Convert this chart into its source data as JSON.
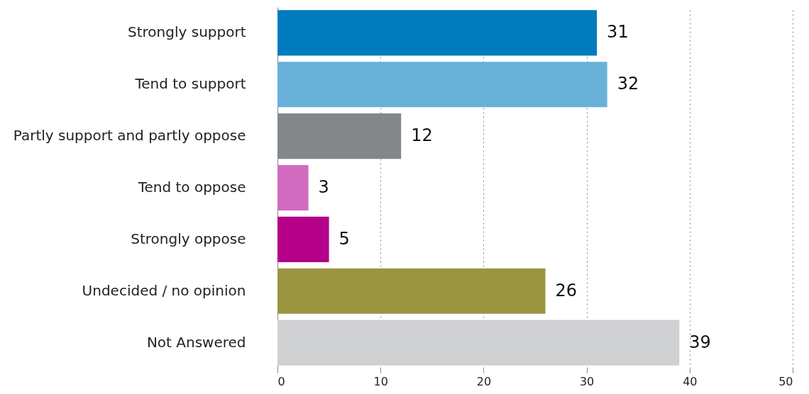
{
  "chart_data": {
    "type": "bar",
    "orientation": "horizontal",
    "categories": [
      "Strongly support",
      "Tend to support",
      "Partly support and partly oppose",
      "Tend to oppose",
      "Strongly oppose",
      "Undecided / no opinion",
      "Not Answered"
    ],
    "values": [
      31,
      32,
      12,
      3,
      5,
      26,
      39
    ],
    "colors": [
      "#007bbd",
      "#67b1d9",
      "#84878a",
      "#d16bbf",
      "#b5008a",
      "#9b9541",
      "#cfd0d2"
    ],
    "xlim": [
      0,
      50
    ],
    "xticks": [
      0,
      10,
      20,
      30,
      40,
      50
    ],
    "grid": "x",
    "data_labels": true
  }
}
